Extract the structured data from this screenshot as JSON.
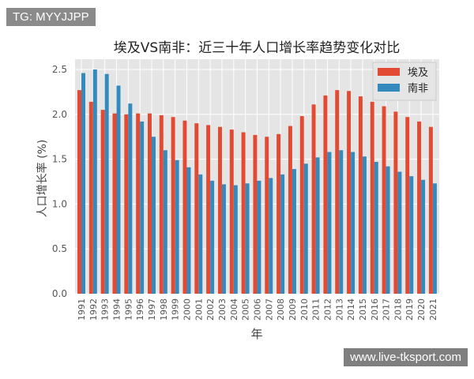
{
  "watermarks": {
    "top_left": "TG: MYYJJPP",
    "bottom_right": "www.live-tksport.com"
  },
  "chart_data": {
    "type": "bar",
    "title": "埃及VS南非：近三十年人口增长率趋势变化对比",
    "xlabel": "年",
    "ylabel": "人口增长率 (%)",
    "ylim": [
      0,
      2.6
    ],
    "yticks": [
      "0.0",
      "0.5",
      "1.0",
      "1.5",
      "2.0",
      "2.5"
    ],
    "grid": true,
    "legend": "top-right",
    "categories": [
      "1991",
      "1992",
      "1993",
      "1994",
      "1995",
      "1996",
      "1997",
      "1998",
      "1999",
      "2000",
      "2001",
      "2002",
      "2003",
      "2004",
      "2005",
      "2006",
      "2007",
      "2008",
      "2009",
      "2010",
      "2011",
      "2012",
      "2013",
      "2014",
      "2015",
      "2016",
      "2017",
      "2018",
      "2019",
      "2020",
      "2021"
    ],
    "series": [
      {
        "name": "埃及",
        "color": "#e24a33",
        "values": [
          2.27,
          2.14,
          2.05,
          2.01,
          2.0,
          2.01,
          2.01,
          1.99,
          1.97,
          1.93,
          1.9,
          1.88,
          1.86,
          1.83,
          1.8,
          1.77,
          1.75,
          1.78,
          1.87,
          1.98,
          2.11,
          2.21,
          2.27,
          2.26,
          2.2,
          2.14,
          2.09,
          2.03,
          1.97,
          1.92,
          1.86
        ]
      },
      {
        "name": "南非",
        "color": "#348abd",
        "values": [
          2.46,
          2.5,
          2.45,
          2.32,
          2.12,
          1.92,
          1.75,
          1.6,
          1.49,
          1.41,
          1.33,
          1.26,
          1.22,
          1.21,
          1.23,
          1.26,
          1.29,
          1.33,
          1.39,
          1.45,
          1.52,
          1.58,
          1.6,
          1.58,
          1.53,
          1.47,
          1.42,
          1.36,
          1.31,
          1.27,
          1.23
        ]
      }
    ]
  }
}
